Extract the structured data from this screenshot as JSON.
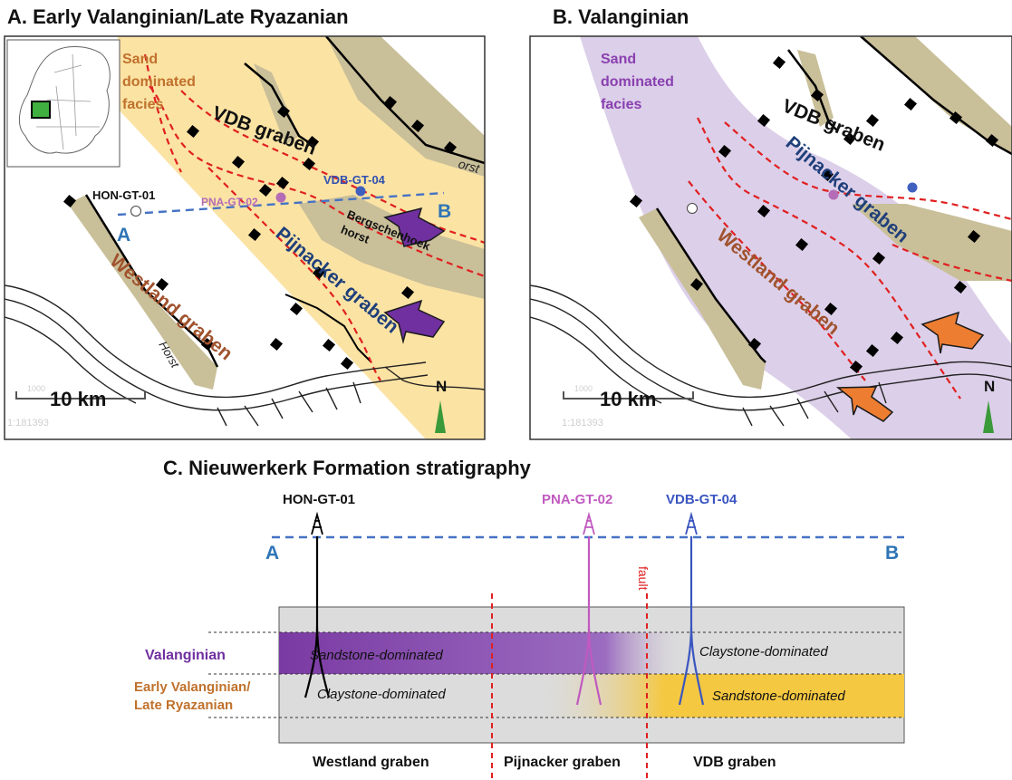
{
  "panel_a": {
    "title": "A. Early Valanginian/Late Ryazanian",
    "facies_label_lines": [
      "Sand",
      "dominated",
      "facies"
    ],
    "vdb_graben": "VDB graben",
    "pijnacker_graben": "Pijnacker graben",
    "westland_graben": "Westland graben",
    "bergschenhoek_horst": [
      "Bergschenhoek",
      "horst"
    ],
    "horst_left": "Horst",
    "horst_top": "orst",
    "well_hon": "HON-GT-01",
    "well_pna": "PNA-GT-02",
    "well_vdb": "VDB-GT-04",
    "point_a": "A",
    "point_b": "B",
    "scale_label": "10 km",
    "scale_ghost_top": "1000",
    "scale_ghost_bottom": "1:181393",
    "north": "N",
    "facies_color": "#fbe3a4",
    "arrow_color": "#7030a0"
  },
  "panel_b": {
    "title": "B. Valanginian",
    "facies_label_lines": [
      "Sand",
      "dominated",
      "facies"
    ],
    "vdb_graben": "VDB graben",
    "pijnacker_graben": "Pijnacker graben",
    "westland_graben": "Westland graben",
    "scale_label": "10 km",
    "scale_ghost_top": "1000",
    "scale_ghost_bottom": "1:181393",
    "north": "N",
    "facies_color": "#dccfe9",
    "arrow_color": "#ed7d31"
  },
  "panel_c": {
    "title": "C. Nieuwerkerk Formation stratigraphy",
    "wells": [
      "HON-GT-01",
      "PNA-GT-02",
      "VDB-GT-04"
    ],
    "point_a": "A",
    "point_b": "B",
    "fault": "fault",
    "row_valanginian": "Valanginian",
    "row_early_lines": [
      "Early Valanginian/",
      "Late Ryazanian"
    ],
    "sandstone_dominated": "Sandstone-dominated",
    "claystone_dominated": "Claystone-dominated",
    "grabens": [
      "Westland graben",
      "Pijnacker graben",
      "VDB graben"
    ]
  }
}
